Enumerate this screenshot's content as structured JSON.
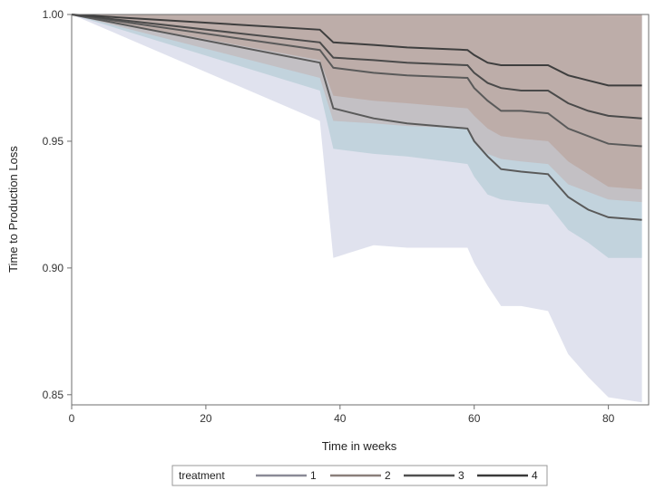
{
  "chart_data": {
    "type": "line",
    "xlabel": "Time in weeks",
    "ylabel": "Time to Production Loss",
    "xlim": [
      0,
      86
    ],
    "ylim": [
      0.846,
      1.0
    ],
    "x_ticks": [
      0,
      20,
      40,
      60,
      80
    ],
    "x_tick_labels": [
      "0",
      "20",
      "40",
      "60",
      "80"
    ],
    "y_ticks": [
      0.85,
      0.9,
      0.95,
      1.0
    ],
    "y_tick_labels": [
      "0.85",
      "0.90",
      "0.95",
      "1.00"
    ],
    "grid": false,
    "legend": {
      "title": "treatment",
      "placement": "bottom",
      "labels": [
        "1",
        "2",
        "3",
        "4"
      ],
      "colors": [
        "#8a8a96",
        "#8a7f7a",
        "#505050",
        "#3a3a3a"
      ]
    },
    "series": [
      {
        "name": "1",
        "line_color": "#5a5a5a",
        "band_color": "#c6cbe0",
        "x": [
          0,
          37,
          39,
          45,
          50,
          59,
          60,
          62,
          64,
          67,
          71,
          74,
          77,
          80,
          85
        ],
        "values": [
          1.0,
          0.981,
          0.963,
          0.959,
          0.957,
          0.955,
          0.95,
          0.944,
          0.939,
          0.938,
          0.937,
          0.928,
          0.923,
          0.92,
          0.919
        ],
        "lower": [
          1.0,
          0.958,
          0.904,
          0.909,
          0.908,
          0.908,
          0.902,
          0.893,
          0.885,
          0.885,
          0.883,
          0.866,
          0.857,
          0.849,
          0.847
        ],
        "upper": [
          1.0,
          1.0,
          1.0,
          1.0,
          1.0,
          1.0,
          1.0,
          1.0,
          1.0,
          1.0,
          1.0,
          1.0,
          1.0,
          0.999,
          0.999
        ]
      },
      {
        "name": "2",
        "line_color": "#5a5a5a",
        "band_color": "#a9c6cf",
        "x": [
          0,
          37,
          39,
          45,
          50,
          59,
          60,
          62,
          64,
          67,
          71,
          74,
          77,
          80,
          85
        ],
        "values": [
          1.0,
          0.986,
          0.979,
          0.977,
          0.976,
          0.975,
          0.971,
          0.966,
          0.962,
          0.962,
          0.961,
          0.955,
          0.952,
          0.949,
          0.948
        ],
        "lower": [
          1.0,
          0.97,
          0.947,
          0.945,
          0.944,
          0.941,
          0.936,
          0.929,
          0.927,
          0.926,
          0.925,
          0.915,
          0.91,
          0.904,
          0.904
        ],
        "upper": [
          1.0,
          1.0,
          1.0,
          1.0,
          1.0,
          1.0,
          1.0,
          1.0,
          1.0,
          1.0,
          1.0,
          1.0,
          1.0,
          1.0,
          1.0
        ]
      },
      {
        "name": "3",
        "line_color": "#4a4a4a",
        "band_color": "#c4b0ae",
        "x": [
          0,
          37,
          39,
          45,
          50,
          59,
          60,
          62,
          64,
          67,
          71,
          74,
          77,
          80,
          85
        ],
        "values": [
          1.0,
          0.989,
          0.983,
          0.982,
          0.981,
          0.98,
          0.977,
          0.973,
          0.971,
          0.97,
          0.97,
          0.965,
          0.962,
          0.96,
          0.959
        ],
        "lower": [
          1.0,
          0.975,
          0.958,
          0.957,
          0.956,
          0.955,
          0.95,
          0.945,
          0.943,
          0.942,
          0.941,
          0.933,
          0.93,
          0.927,
          0.926
        ],
        "upper": [
          1.0,
          1.0,
          1.0,
          1.0,
          1.0,
          1.0,
          1.0,
          1.0,
          1.0,
          1.0,
          1.0,
          1.0,
          1.0,
          1.0,
          1.0
        ]
      },
      {
        "name": "4",
        "line_color": "#3e3e3e",
        "band_color": "#b89c94",
        "x": [
          0,
          37,
          39,
          45,
          50,
          59,
          60,
          62,
          64,
          67,
          71,
          74,
          77,
          80,
          85
        ],
        "values": [
          1.0,
          0.994,
          0.989,
          0.988,
          0.987,
          0.986,
          0.984,
          0.981,
          0.98,
          0.98,
          0.98,
          0.976,
          0.974,
          0.972,
          0.972
        ],
        "lower": [
          1.0,
          0.982,
          0.968,
          0.966,
          0.965,
          0.963,
          0.96,
          0.955,
          0.952,
          0.951,
          0.95,
          0.942,
          0.937,
          0.932,
          0.931
        ],
        "upper": [
          1.0,
          1.0,
          1.0,
          1.0,
          1.0,
          1.0,
          1.0,
          1.0,
          1.0,
          1.0,
          1.0,
          1.0,
          1.0,
          1.0,
          1.0
        ]
      }
    ]
  }
}
